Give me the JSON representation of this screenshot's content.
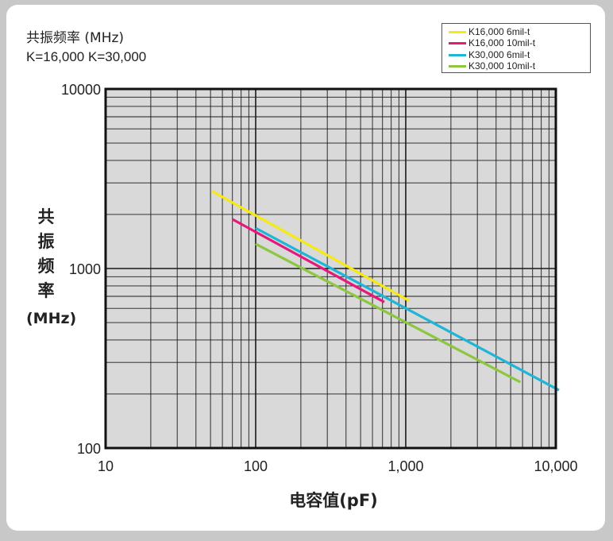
{
  "header": {
    "title": "共振频率 (MHz)",
    "subtitle": "K=16,000  K=30,000"
  },
  "chart_data": {
    "type": "line",
    "title": "共振频率 (MHz)",
    "xlabel": "电容值(pF)",
    "ylabel_chars": [
      "共",
      "振",
      "频",
      "率"
    ],
    "ylabel_unit": "(MHz)",
    "x_scale": "log",
    "y_scale": "log",
    "xlim": [
      10,
      10000
    ],
    "ylim": [
      100,
      10000
    ],
    "x_ticks": [
      {
        "value": 10,
        "label": "10"
      },
      {
        "value": 100,
        "label": "100"
      },
      {
        "value": 1000,
        "label": "1,000"
      },
      {
        "value": 10000,
        "label": "10,000"
      }
    ],
    "y_ticks": [
      {
        "value": 10000,
        "label": "10000"
      },
      {
        "value": 1000,
        "label": "1000"
      },
      {
        "value": 100,
        "label": "100"
      }
    ],
    "grid": true,
    "legend_position": "top-right",
    "series": [
      {
        "name": "K16,000 6mil-t",
        "color": "#f5ea14",
        "x": [
          51,
          1060
        ],
        "y": [
          2700,
          660
        ]
      },
      {
        "name": "K16,000 10mil-t",
        "color": "#e5197a",
        "x": [
          70,
          720
        ],
        "y": [
          1880,
          650
        ]
      },
      {
        "name": "K30,000 6mil-t",
        "color": "#1fb5d6",
        "x": [
          100,
          10500
        ],
        "y": [
          1680,
          210
        ]
      },
      {
        "name": "K30,000 10mil-t",
        "color": "#8dc63f",
        "x": [
          100,
          5800
        ],
        "y": [
          1370,
          233
        ]
      }
    ]
  }
}
